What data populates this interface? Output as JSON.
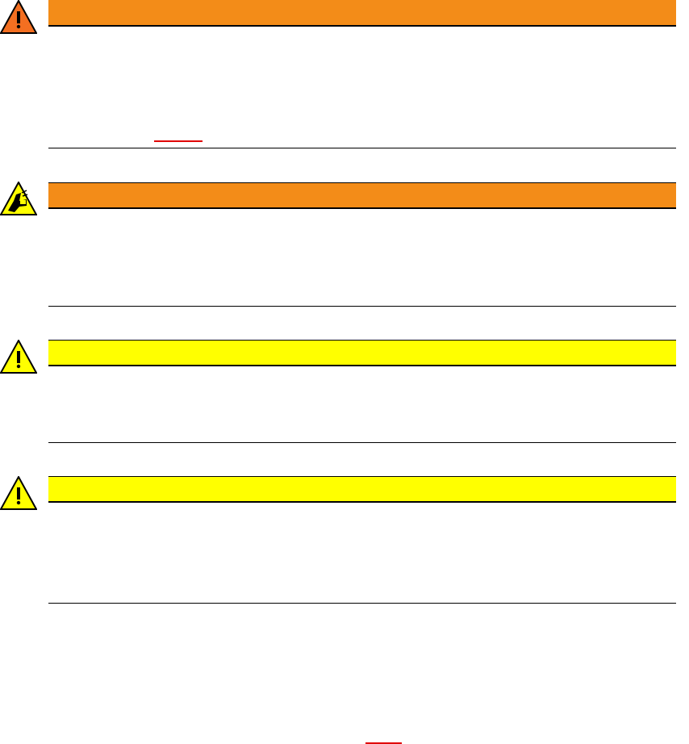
{
  "colors": {
    "danger_bar": "#f38c18",
    "caution_bar": "#ffff00",
    "rule": "#000000",
    "link_underline": "#e00000"
  },
  "notices": [
    {
      "level": "danger",
      "icon": "warning-triangle-icon"
    },
    {
      "level": "danger",
      "icon": "hand-crush-hazard-icon"
    },
    {
      "level": "caution",
      "icon": "warning-triangle-icon"
    },
    {
      "level": "caution",
      "icon": "warning-triangle-icon"
    }
  ]
}
